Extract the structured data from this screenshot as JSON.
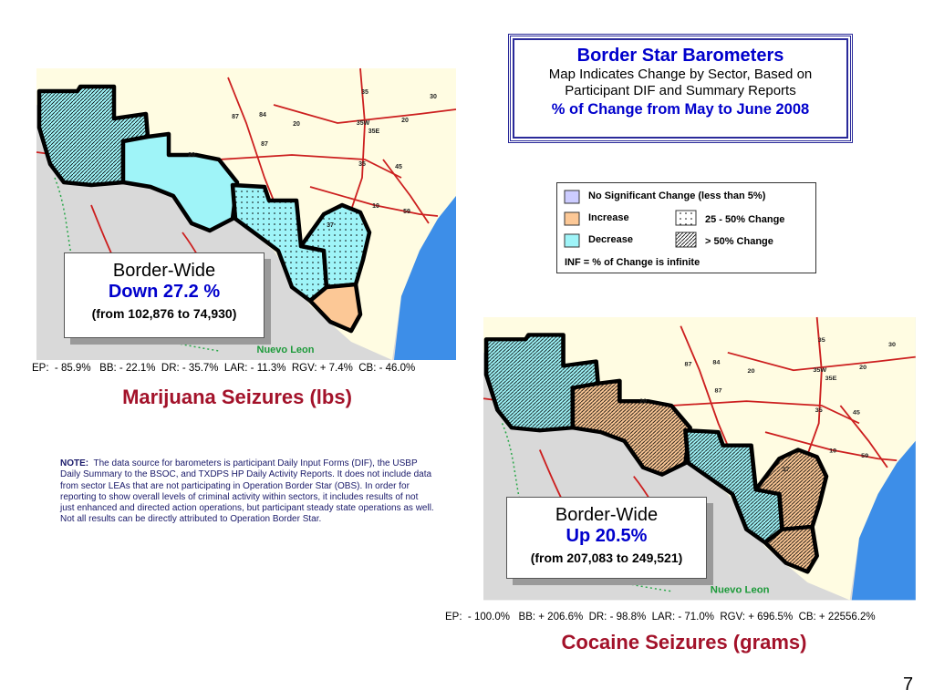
{
  "header": {
    "title": "Border Star Barometers",
    "lines": [
      "Map Indicates Change by Sector, Based on",
      "Participant DIF and Summary Reports"
    ],
    "period": "% of Change from May to June 2008"
  },
  "legend": {
    "no_change": "No Significant Change (less than 5%)",
    "increase": "Increase",
    "decrease": "Decrease",
    "moderate": "25 - 50% Change",
    "large": "> 50% Change",
    "infinite": "INF = % of Change is infinite"
  },
  "maps": [
    {
      "summary_title": "Border-Wide",
      "summary_change": "Down 27.2 %",
      "summary_range": "(from 102,876 to 74,930)",
      "sector_stats": "EP:  - 85.9%   BB: - 22.1%  DR: - 35.7%  LAR: - 11.3%  RGV: + 7.4%  CB: - 46.0%",
      "caption": "Marijuana Seizures (lbs)"
    },
    {
      "summary_title": "Border-Wide",
      "summary_change": "Up 20.5%",
      "summary_range": "(from 207,083 to 249,521)",
      "sector_stats": "EP:  - 100.0%   BB: + 206.6%  DR: - 98.8%  LAR: - 71.0%  RGV: + 696.5%  CB: + 22556.2%",
      "caption": "Cocaine Seizures (grams)"
    }
  ],
  "highway_labels": [
    "35",
    "30",
    "87",
    "84",
    "20",
    "35W",
    "35E",
    "45",
    "10",
    "59",
    "37"
  ],
  "region_label": "Nuevo Leon",
  "note": {
    "label": "NOTE:",
    "text": "The data source for barometers is participant Daily Input Forms (DIF), the USBP Daily Summary to the BSOC, and TXDPS HP Daily Activity Reports.  It does not include data from sector LEAs that are not participating in Operation Border Star (OBS).  In order for reporting to show overall levels of criminal activity within sectors, it includes results of not just enhanced and directed action operations, but participant steady state operations as well.  Not all results can be directly attributed to Operation Border Star."
  },
  "page_number": "7"
}
